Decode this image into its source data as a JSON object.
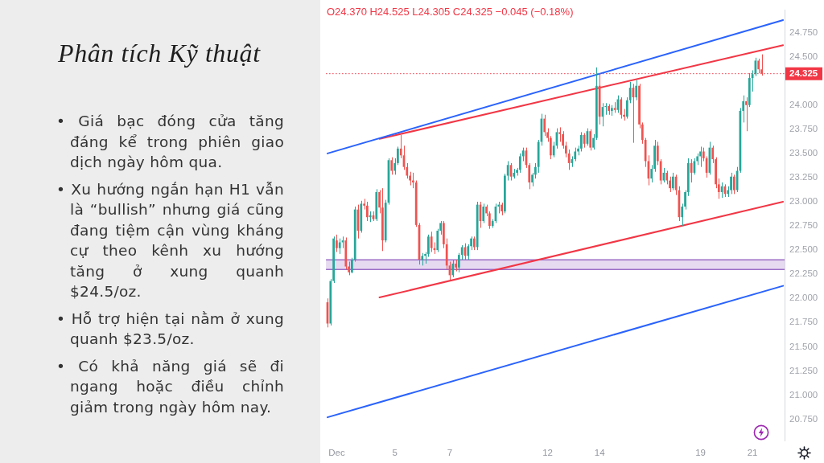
{
  "chart_data": {
    "type": "candlestick",
    "title": "Phân tích Kỹ thuật",
    "annotations": [
      "O24.370 H24.525 L24.305 C24.325 −0.045 (−0.18%)",
      "• Giá bạc đóng cửa tăng đáng kể trong phiên giao dịch ngày hôm qua.",
      "• Xu hướng ngắn hạn H1 vẫn là “bullish” nhưng giá cũng đang tiệm cận vùng kháng cự theo kênh xu hướng tăng ở xung quanh $24.5/oz.",
      "• Hỗ trợ hiện tại nằm ở xung quanh $23.5/oz.",
      "• Có khả năng giá sẽ đi ngang hoặc điều chỉnh giảm trong ngày hôm nay."
    ],
    "categories": [
      null,
      null,
      null,
      "Dec",
      null,
      null,
      null,
      null,
      null,
      null,
      null,
      null,
      null,
      null,
      null,
      null,
      null,
      null,
      null,
      null,
      null,
      null,
      "5",
      null,
      null,
      null,
      null,
      null,
      null,
      null,
      null,
      null,
      null,
      null,
      null,
      null,
      null,
      null,
      null,
      null,
      "7",
      null,
      null,
      null,
      null,
      null,
      null,
      null,
      null,
      null,
      null,
      null,
      null,
      null,
      null,
      null,
      null,
      null,
      null,
      null,
      null,
      null,
      null,
      null,
      null,
      null,
      null,
      null,
      null,
      null,
      null,
      null,
      "12",
      null,
      null,
      null,
      null,
      null,
      null,
      null,
      null,
      null,
      null,
      null,
      null,
      null,
      null,
      null,
      null,
      "14",
      null,
      null,
      null,
      null,
      null,
      null,
      null,
      null,
      null,
      null,
      null,
      null,
      null,
      null,
      null,
      null,
      null,
      null,
      null,
      null,
      null,
      null,
      null,
      null,
      null,
      null,
      null,
      null,
      null,
      null,
      null,
      null,
      "19",
      null,
      null,
      null,
      null,
      null,
      null,
      null,
      null,
      null,
      null,
      null,
      null,
      null,
      null,
      null,
      null,
      "21",
      null,
      null,
      null,
      null,
      null,
      null,
      null,
      null,
      null,
      null
    ],
    "ohlc": [
      [
        21.96,
        22.0,
        21.7,
        21.74
      ],
      [
        21.74,
        22.2,
        21.72,
        22.18
      ],
      [
        22.18,
        22.64,
        22.16,
        22.62
      ],
      [
        22.6,
        22.66,
        22.48,
        22.52
      ],
      [
        22.52,
        22.62,
        22.46,
        22.58
      ],
      [
        22.58,
        22.64,
        22.52,
        22.6
      ],
      [
        22.6,
        22.63,
        22.3,
        22.33
      ],
      [
        22.33,
        22.38,
        22.24,
        22.27
      ],
      [
        22.27,
        22.42,
        22.26,
        22.4
      ],
      [
        22.4,
        22.95,
        22.38,
        22.92
      ],
      [
        22.92,
        22.97,
        22.62,
        22.7
      ],
      [
        22.7,
        23.01,
        22.68,
        22.98
      ],
      [
        22.98,
        23.03,
        22.92,
        22.96
      ],
      [
        22.96,
        23.0,
        22.8,
        22.84
      ],
      [
        22.84,
        22.9,
        22.79,
        22.86
      ],
      [
        22.86,
        22.9,
        22.8,
        22.82
      ],
      [
        22.82,
        23.13,
        22.8,
        23.1
      ],
      [
        23.1,
        23.12,
        22.88,
        22.94
      ],
      [
        22.94,
        23.14,
        22.49,
        22.6
      ],
      [
        22.6,
        23.02,
        22.58,
        22.99
      ],
      [
        22.99,
        23.45,
        22.97,
        23.43
      ],
      [
        23.43,
        23.46,
        23.28,
        23.32
      ],
      [
        23.32,
        23.45,
        23.28,
        23.4
      ],
      [
        23.4,
        23.57,
        23.38,
        23.55
      ],
      [
        23.55,
        23.69,
        23.45,
        23.48
      ],
      [
        23.48,
        23.58,
        23.33,
        23.36
      ],
      [
        23.36,
        23.4,
        23.24,
        23.27
      ],
      [
        23.27,
        23.31,
        23.17,
        23.22
      ],
      [
        23.22,
        23.3,
        23.14,
        23.2
      ],
      [
        23.2,
        23.22,
        22.74,
        22.76
      ],
      [
        22.76,
        22.78,
        22.35,
        22.4
      ],
      [
        22.4,
        22.47,
        22.34,
        22.44
      ],
      [
        22.44,
        22.48,
        22.36,
        22.46
      ],
      [
        22.46,
        22.66,
        22.43,
        22.64
      ],
      [
        22.64,
        22.69,
        22.48,
        22.52
      ],
      [
        22.52,
        22.58,
        22.46,
        22.5
      ],
      [
        22.5,
        22.72,
        22.48,
        22.7
      ],
      [
        22.7,
        22.8,
        22.66,
        22.78
      ],
      [
        22.78,
        22.8,
        22.52,
        22.56
      ],
      [
        22.56,
        22.62,
        22.3,
        22.34
      ],
      [
        22.34,
        22.38,
        22.19,
        22.24
      ],
      [
        22.24,
        22.4,
        22.22,
        22.36
      ],
      [
        22.36,
        22.4,
        22.28,
        22.32
      ],
      [
        22.32,
        22.47,
        22.27,
        22.45
      ],
      [
        22.45,
        22.55,
        22.4,
        22.53
      ],
      [
        22.53,
        22.57,
        22.4,
        22.44
      ],
      [
        22.44,
        22.56,
        22.4,
        22.54
      ],
      [
        22.54,
        22.64,
        22.5,
        22.62
      ],
      [
        22.62,
        22.64,
        22.5,
        22.53
      ],
      [
        22.53,
        23.0,
        22.5,
        22.97
      ],
      [
        22.97,
        23.0,
        22.73,
        22.8
      ],
      [
        22.8,
        22.98,
        22.78,
        22.95
      ],
      [
        22.95,
        22.97,
        22.85,
        22.88
      ],
      [
        22.88,
        22.9,
        22.72,
        22.75
      ],
      [
        22.75,
        22.82,
        22.73,
        22.8
      ],
      [
        22.8,
        22.98,
        22.78,
        22.95
      ],
      [
        22.95,
        23.0,
        22.88,
        22.97
      ],
      [
        22.97,
        22.99,
        22.86,
        22.9
      ],
      [
        22.9,
        23.29,
        22.88,
        23.27
      ],
      [
        23.27,
        23.42,
        23.22,
        23.38
      ],
      [
        23.38,
        23.4,
        23.22,
        23.26
      ],
      [
        23.26,
        23.34,
        23.24,
        23.3
      ],
      [
        23.3,
        23.35,
        23.27,
        23.33
      ],
      [
        23.33,
        23.5,
        23.3,
        23.47
      ],
      [
        23.47,
        23.56,
        23.42,
        23.53
      ],
      [
        23.53,
        23.56,
        23.35,
        23.38
      ],
      [
        23.38,
        23.4,
        23.13,
        23.2
      ],
      [
        23.2,
        23.3,
        23.16,
        23.28
      ],
      [
        23.28,
        23.4,
        23.24,
        23.36
      ],
      [
        23.36,
        23.64,
        23.3,
        23.62
      ],
      [
        23.62,
        23.91,
        23.58,
        23.86
      ],
      [
        23.86,
        23.9,
        23.68,
        23.72
      ],
      [
        23.72,
        23.76,
        23.62,
        23.66
      ],
      [
        23.66,
        23.68,
        23.44,
        23.48
      ],
      [
        23.48,
        23.62,
        23.46,
        23.58
      ],
      [
        23.58,
        23.76,
        23.55,
        23.72
      ],
      [
        23.72,
        23.77,
        23.62,
        23.7
      ],
      [
        23.7,
        23.73,
        23.55,
        23.58
      ],
      [
        23.58,
        23.62,
        23.46,
        23.5
      ],
      [
        23.5,
        23.54,
        23.33,
        23.4
      ],
      [
        23.4,
        23.47,
        23.36,
        23.44
      ],
      [
        23.44,
        23.56,
        23.42,
        23.52
      ],
      [
        23.52,
        23.58,
        23.48,
        23.55
      ],
      [
        23.55,
        23.72,
        23.52,
        23.69
      ],
      [
        23.69,
        23.71,
        23.56,
        23.6
      ],
      [
        23.6,
        23.76,
        23.58,
        23.73
      ],
      [
        23.73,
        23.75,
        23.53,
        23.56
      ],
      [
        23.56,
        23.7,
        23.54,
        23.66
      ],
      [
        23.66,
        24.39,
        23.64,
        24.2
      ],
      [
        24.2,
        24.33,
        23.8,
        23.88
      ],
      [
        23.88,
        24.02,
        23.78,
        23.98
      ],
      [
        23.98,
        24.02,
        23.9,
        23.99
      ],
      [
        23.99,
        24.01,
        23.9,
        23.94
      ],
      [
        23.94,
        24.0,
        23.89,
        23.97
      ],
      [
        23.97,
        24.03,
        23.92,
        23.95
      ],
      [
        23.95,
        24.1,
        23.92,
        24.06
      ],
      [
        24.06,
        24.08,
        23.86,
        23.9
      ],
      [
        23.9,
        23.96,
        23.84,
        23.88
      ],
      [
        23.88,
        24.08,
        23.86,
        24.05
      ],
      [
        24.05,
        24.24,
        24.02,
        24.18
      ],
      [
        24.18,
        24.22,
        23.61,
        24.08
      ],
      [
        24.08,
        24.26,
        24.05,
        24.2
      ],
      [
        24.2,
        24.22,
        23.76,
        23.8
      ],
      [
        23.8,
        23.82,
        23.6,
        23.64
      ],
      [
        23.64,
        23.66,
        23.36,
        23.42
      ],
      [
        23.42,
        23.48,
        23.17,
        23.24
      ],
      [
        23.24,
        23.38,
        23.2,
        23.34
      ],
      [
        23.34,
        23.64,
        23.31,
        23.58
      ],
      [
        23.58,
        23.62,
        23.38,
        23.42
      ],
      [
        23.42,
        23.44,
        23.18,
        23.22
      ],
      [
        23.22,
        23.35,
        23.2,
        23.3
      ],
      [
        23.3,
        23.32,
        23.18,
        23.22
      ],
      [
        23.22,
        23.26,
        23.1,
        23.14
      ],
      [
        23.14,
        23.3,
        23.12,
        23.26
      ],
      [
        23.26,
        23.28,
        23.07,
        23.12
      ],
      [
        23.12,
        23.16,
        22.8,
        22.84
      ],
      [
        22.84,
        22.98,
        22.75,
        22.95
      ],
      [
        22.95,
        23.12,
        22.92,
        23.1
      ],
      [
        23.1,
        23.45,
        23.06,
        23.4
      ],
      [
        23.4,
        23.44,
        23.2,
        23.3
      ],
      [
        23.3,
        23.45,
        23.28,
        23.42
      ],
      [
        23.42,
        23.5,
        23.38,
        23.47
      ],
      [
        23.47,
        23.57,
        23.36,
        23.52
      ],
      [
        23.52,
        23.56,
        23.42,
        23.45
      ],
      [
        23.45,
        23.47,
        23.25,
        23.3
      ],
      [
        23.3,
        23.62,
        23.28,
        23.56
      ],
      [
        23.56,
        23.58,
        23.4,
        23.44
      ],
      [
        23.44,
        23.46,
        23.14,
        23.18
      ],
      [
        23.18,
        23.24,
        23.03,
        23.1
      ],
      [
        23.1,
        23.2,
        23.04,
        23.16
      ],
      [
        23.16,
        23.18,
        23.05,
        23.08
      ],
      [
        23.08,
        23.16,
        23.05,
        23.12
      ],
      [
        23.12,
        23.3,
        23.08,
        23.26
      ],
      [
        23.26,
        23.28,
        23.08,
        23.12
      ],
      [
        23.12,
        23.36,
        23.1,
        23.32
      ],
      [
        23.32,
        23.97,
        23.3,
        23.94
      ],
      [
        23.94,
        24.1,
        23.82,
        24.04
      ],
      [
        24.04,
        24.08,
        23.73,
        24.0
      ],
      [
        24.0,
        24.33,
        23.98,
        24.28
      ],
      [
        24.28,
        24.36,
        24.14,
        24.32
      ],
      [
        24.32,
        24.49,
        24.3,
        24.46
      ],
      [
        24.46,
        24.48,
        24.33,
        24.37
      ],
      [
        24.37,
        24.525,
        24.305,
        24.325
      ],
      null,
      null,
      null,
      null,
      null,
      null,
      null
    ],
    "colors": [
      "#ef5350",
      "#26a69a",
      "#26a69a",
      "#ef5350",
      "#26a69a",
      "#26a69a",
      "#ef5350",
      "#ef5350",
      "#26a69a",
      "#26a69a",
      "#ef5350",
      "#26a69a",
      "#ef5350",
      "#ef5350",
      "#26a69a",
      "#ef5350",
      "#26a69a",
      "#ef5350",
      "#ef5350",
      "#26a69a",
      "#26a69a",
      "#ef5350",
      "#26a69a",
      "#26a69a",
      "#ef5350",
      "#ef5350",
      "#ef5350",
      "#ef5350",
      "#ef5350",
      "#ef5350",
      "#ef5350",
      "#26a69a",
      "#26a69a",
      "#26a69a",
      "#ef5350",
      "#ef5350",
      "#26a69a",
      "#26a69a",
      "#ef5350",
      "#ef5350",
      "#ef5350",
      "#26a69a",
      "#ef5350",
      "#26a69a",
      "#26a69a",
      "#ef5350",
      "#26a69a",
      "#26a69a",
      "#ef5350",
      "#26a69a",
      "#ef5350",
      "#26a69a",
      "#ef5350",
      "#ef5350",
      "#26a69a",
      "#26a69a",
      "#26a69a",
      "#ef5350",
      "#26a69a",
      "#26a69a",
      "#ef5350",
      "#26a69a",
      "#26a69a",
      "#26a69a",
      "#26a69a",
      "#ef5350",
      "#ef5350",
      "#26a69a",
      "#26a69a",
      "#26a69a",
      "#26a69a",
      "#ef5350",
      "#ef5350",
      "#ef5350",
      "#26a69a",
      "#26a69a",
      "#ef5350",
      "#ef5350",
      "#ef5350",
      "#ef5350",
      "#26a69a",
      "#26a69a",
      "#26a69a",
      "#26a69a",
      "#ef5350",
      "#26a69a",
      "#ef5350",
      "#26a69a",
      "#26a69a",
      "#ef5350",
      "#26a69a",
      "#26a69a",
      "#ef5350",
      "#26a69a",
      "#ef5350",
      "#26a69a",
      "#ef5350",
      "#ef5350",
      "#26a69a",
      "#26a69a",
      "#ef5350",
      "#26a69a",
      "#ef5350",
      "#ef5350",
      "#ef5350",
      "#ef5350",
      "#26a69a",
      "#26a69a",
      "#ef5350",
      "#ef5350",
      "#26a69a",
      "#ef5350",
      "#ef5350",
      "#26a69a",
      "#ef5350",
      "#ef5350",
      "#26a69a",
      "#26a69a",
      "#26a69a",
      "#ef5350",
      "#26a69a",
      "#26a69a",
      "#26a69a",
      "#ef5350",
      "#ef5350",
      "#26a69a",
      "#ef5350",
      "#ef5350",
      "#ef5350",
      "#26a69a",
      "#ef5350",
      "#26a69a",
      "#26a69a",
      "#ef5350",
      "#26a69a",
      "#26a69a",
      "#26a69a",
      "#ef5350",
      "#26a69a",
      "#26a69a",
      "#26a69a",
      "#ef5350",
      "#ef5350",
      null,
      null,
      null,
      null,
      null,
      null,
      null
    ],
    "series": [
      {
        "type": "line",
        "color": "#2962ff",
        "values": [
          23.5,
          null,
          null,
          null,
          null,
          null,
          null,
          null,
          null,
          null,
          null,
          null,
          null,
          null,
          null,
          null,
          null,
          null,
          null,
          null,
          null,
          null,
          null,
          null,
          null,
          null,
          null,
          null,
          null,
          null,
          null,
          null,
          null,
          null,
          null,
          null,
          null,
          null,
          null,
          null,
          null,
          null,
          null,
          null,
          null,
          null,
          null,
          null,
          null,
          null,
          null,
          null,
          null,
          null,
          null,
          null,
          null,
          null,
          null,
          null,
          null,
          null,
          null,
          null,
          null,
          null,
          null,
          null,
          null,
          null,
          null,
          null,
          null,
          null,
          null,
          null,
          null,
          null,
          null,
          null,
          null,
          null,
          null,
          null,
          null,
          null,
          null,
          null,
          null,
          null,
          null,
          null,
          null,
          null,
          null,
          null,
          null,
          null,
          null,
          null,
          null,
          null,
          null,
          null,
          null,
          null,
          null,
          null,
          null,
          null,
          null,
          null,
          null,
          null,
          null,
          null,
          null,
          null,
          null,
          null,
          null,
          null,
          null,
          null,
          null,
          null,
          null,
          null,
          null,
          null,
          null,
          null,
          null,
          null,
          null,
          null,
          null,
          null,
          null,
          null,
          null,
          null,
          null,
          null,
          null,
          null,
          null,
          null,
          null,
          24.88
        ]
      },
      {
        "type": "line",
        "color": "#f23645",
        "values": [
          null,
          null,
          null,
          null,
          null,
          null,
          null,
          null,
          null,
          null,
          null,
          null,
          null,
          null,
          null,
          null,
          null,
          23.65,
          null,
          null,
          null,
          null,
          null,
          null,
          null,
          null,
          null,
          null,
          null,
          null,
          null,
          null,
          null,
          null,
          null,
          null,
          null,
          null,
          null,
          null,
          null,
          null,
          null,
          null,
          null,
          null,
          null,
          null,
          null,
          null,
          null,
          null,
          null,
          null,
          null,
          null,
          null,
          null,
          null,
          null,
          null,
          null,
          null,
          null,
          null,
          null,
          null,
          null,
          null,
          null,
          null,
          null,
          null,
          null,
          null,
          null,
          null,
          null,
          null,
          null,
          null,
          null,
          null,
          null,
          null,
          null,
          null,
          null,
          null,
          null,
          null,
          null,
          null,
          null,
          null,
          null,
          null,
          null,
          null,
          null,
          null,
          null,
          null,
          null,
          null,
          null,
          null,
          null,
          null,
          null,
          null,
          null,
          null,
          null,
          null,
          null,
          null,
          null,
          null,
          null,
          null,
          null,
          null,
          null,
          null,
          null,
          null,
          null,
          null,
          null,
          null,
          null,
          null,
          null,
          null,
          null,
          null,
          null,
          null,
          null,
          null,
          null,
          null,
          null,
          null,
          null,
          null,
          null,
          null,
          24.62
        ]
      },
      {
        "type": "line",
        "color": "#f23645",
        "values": [
          null,
          null,
          null,
          null,
          null,
          null,
          null,
          null,
          null,
          null,
          null,
          null,
          null,
          null,
          null,
          null,
          null,
          22.01,
          null,
          null,
          null,
          null,
          null,
          null,
          null,
          null,
          null,
          null,
          null,
          null,
          null,
          null,
          null,
          null,
          null,
          null,
          null,
          null,
          null,
          null,
          null,
          null,
          null,
          null,
          null,
          null,
          null,
          null,
          null,
          null,
          null,
          null,
          null,
          null,
          null,
          null,
          null,
          null,
          null,
          null,
          null,
          null,
          null,
          null,
          null,
          null,
          null,
          null,
          null,
          null,
          null,
          null,
          null,
          null,
          null,
          null,
          null,
          null,
          null,
          null,
          null,
          null,
          null,
          null,
          null,
          null,
          null,
          null,
          null,
          null,
          null,
          null,
          null,
          null,
          null,
          null,
          null,
          null,
          null,
          null,
          null,
          null,
          null,
          null,
          null,
          null,
          null,
          null,
          null,
          null,
          null,
          null,
          null,
          null,
          null,
          null,
          null,
          null,
          null,
          null,
          null,
          null,
          null,
          null,
          null,
          null,
          null,
          null,
          null,
          null,
          null,
          null,
          null,
          null,
          null,
          null,
          null,
          null,
          null,
          null,
          null,
          null,
          null,
          null,
          null,
          null,
          null,
          null,
          null,
          23.0
        ]
      },
      {
        "type": "line",
        "color": "#2962ff",
        "values": [
          20.77,
          null,
          null,
          null,
          null,
          null,
          null,
          null,
          null,
          null,
          null,
          null,
          null,
          null,
          null,
          null,
          null,
          null,
          null,
          null,
          null,
          null,
          null,
          null,
          null,
          null,
          null,
          null,
          null,
          null,
          null,
          null,
          null,
          null,
          null,
          null,
          null,
          null,
          null,
          null,
          null,
          null,
          null,
          null,
          null,
          null,
          null,
          null,
          null,
          null,
          null,
          null,
          null,
          null,
          null,
          null,
          null,
          null,
          null,
          null,
          null,
          null,
          null,
          null,
          null,
          null,
          null,
          null,
          null,
          null,
          null,
          null,
          null,
          null,
          null,
          null,
          null,
          null,
          null,
          null,
          null,
          null,
          null,
          null,
          null,
          null,
          null,
          null,
          null,
          null,
          null,
          null,
          null,
          null,
          null,
          null,
          null,
          null,
          null,
          null,
          null,
          null,
          null,
          null,
          null,
          null,
          null,
          null,
          null,
          null,
          null,
          null,
          null,
          null,
          null,
          null,
          null,
          null,
          null,
          null,
          null,
          null,
          null,
          null,
          null,
          null,
          null,
          null,
          null,
          null,
          null,
          null,
          null,
          null,
          null,
          null,
          null,
          null,
          null,
          null,
          null,
          null,
          null,
          null,
          null,
          null,
          null,
          null,
          null,
          22.13
        ]
      }
    ],
    "ylim": [
      20.53,
      24.98
    ],
    "yticks": [
      {
        "value": 20.75,
        "label": "20.750"
      },
      {
        "value": 21.0,
        "label": "21.000"
      },
      {
        "value": 21.25,
        "label": "21.250"
      },
      {
        "value": 21.5,
        "label": "21.500"
      },
      {
        "value": 21.75,
        "label": "21.750"
      },
      {
        "value": 22.0,
        "label": "22.000"
      },
      {
        "value": 22.25,
        "label": "22.250"
      },
      {
        "value": 22.5,
        "label": "22.500"
      },
      {
        "value": 22.75,
        "label": "22.750"
      },
      {
        "value": 23.0,
        "label": "23.000"
      },
      {
        "value": 23.25,
        "label": "23.250"
      },
      {
        "value": 23.5,
        "label": "23.500"
      },
      {
        "value": 23.75,
        "label": "23.750"
      },
      {
        "value": 24.0,
        "label": "24.000"
      },
      {
        "value": 24.5,
        "label": "24.500"
      },
      {
        "value": 24.75,
        "label": "24.750"
      }
    ],
    "ref_lines": [
      {
        "axis": "y",
        "value": 24.325,
        "label": "24.325",
        "color": "#f23645",
        "line_style": "dotted"
      },
      {
        "axis": "y",
        "value": 22.4,
        "color": "#9b6dc6",
        "line_style": "solid"
      },
      {
        "axis": "y",
        "value": 22.3,
        "color": "#9b6dc6",
        "line_style": "solid"
      }
    ],
    "bands": [
      {
        "axis": "y",
        "from": 22.3,
        "to": 22.4,
        "color": "#9b6dc6"
      }
    ],
    "grid": false,
    "legend": false,
    "marker": "none"
  }
}
